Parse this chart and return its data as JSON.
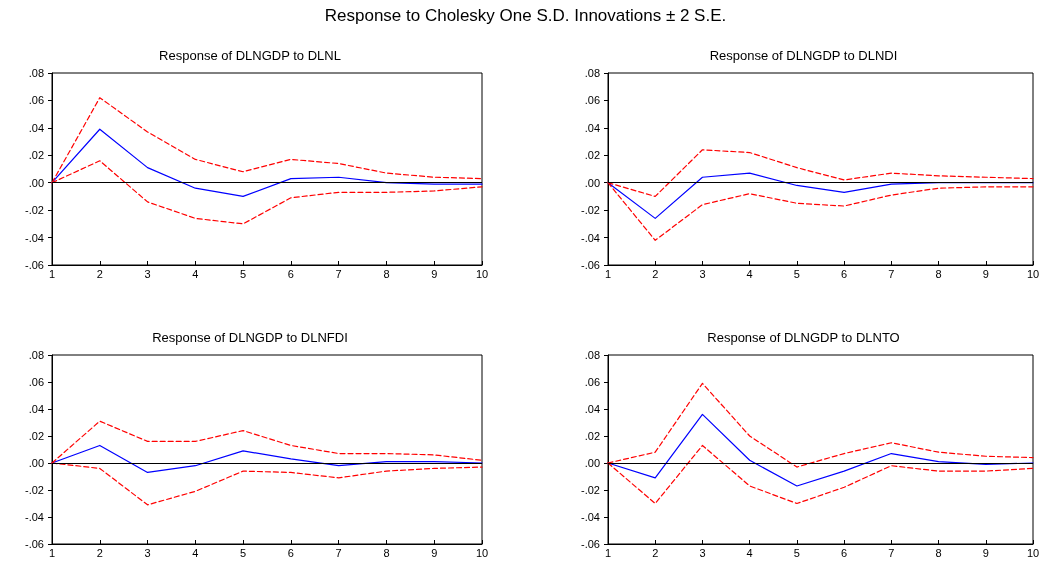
{
  "chart_data": [
    {
      "type": "line",
      "title": "Response to Cholesky One S.D. Innovations ± 2 S.E.",
      "subtitle": "Response of DLNGDP to DLNL",
      "categories": [
        "1",
        "2",
        "3",
        "4",
        "5",
        "6",
        "7",
        "8",
        "9",
        "10"
      ],
      "ylim": [
        -0.06,
        0.08
      ],
      "yticks": [
        {
          "value": -0.06,
          "label": "-.06"
        },
        {
          "value": -0.04,
          "label": "-.04"
        },
        {
          "value": -0.02,
          "label": "-.02"
        },
        {
          "value": 0,
          "label": ".00"
        },
        {
          "value": 0.02,
          "label": ".02"
        },
        {
          "value": 0.04,
          "label": ".04"
        },
        {
          "value": 0.06,
          "label": ".06"
        },
        {
          "value": 0.08,
          "label": ".08"
        }
      ],
      "marker": "none",
      "ref_lines": [
        {
          "axis": "y",
          "value": 0,
          "color": "#000000",
          "line_style": "solid"
        }
      ],
      "series": [
        {
          "color": "#0000ff",
          "line_style": "solid",
          "values": [
            0,
            0.039,
            0.011,
            -0.004,
            -0.01,
            0.003,
            0.004,
            0.0,
            -0.001,
            -0.001
          ]
        },
        {
          "color": "#ff0000",
          "line_style": "dashed",
          "values": [
            0,
            0.062,
            0.037,
            0.017,
            0.008,
            0.017,
            0.014,
            0.007,
            0.004,
            0.003
          ]
        },
        {
          "color": "#ff0000",
          "line_style": "dashed",
          "values": [
            0,
            0.016,
            -0.014,
            -0.026,
            -0.03,
            -0.011,
            -0.007,
            -0.007,
            -0.006,
            -0.003
          ]
        }
      ]
    },
    {
      "type": "line",
      "subtitle": "Response of DLNGDP to DLNDI",
      "categories": [
        "1",
        "2",
        "3",
        "4",
        "5",
        "6",
        "7",
        "8",
        "9",
        "10"
      ],
      "ylim": [
        -0.06,
        0.08
      ],
      "yticks": [
        {
          "value": -0.06,
          "label": "-.06"
        },
        {
          "value": -0.04,
          "label": "-.04"
        },
        {
          "value": -0.02,
          "label": "-.02"
        },
        {
          "value": 0,
          "label": ".00"
        },
        {
          "value": 0.02,
          "label": ".02"
        },
        {
          "value": 0.04,
          "label": ".04"
        },
        {
          "value": 0.06,
          "label": ".06"
        },
        {
          "value": 0.08,
          "label": ".08"
        }
      ],
      "marker": "none",
      "ref_lines": [
        {
          "axis": "y",
          "value": 0,
          "color": "#000000",
          "line_style": "solid"
        }
      ],
      "series": [
        {
          "color": "#0000ff",
          "line_style": "solid",
          "values": [
            0,
            -0.026,
            0.004,
            0.007,
            -0.002,
            -0.007,
            -0.001,
            0.0,
            0.0,
            0.0
          ]
        },
        {
          "color": "#ff0000",
          "line_style": "dashed",
          "values": [
            0,
            -0.01,
            0.024,
            0.022,
            0.011,
            0.002,
            0.007,
            0.005,
            0.004,
            0.003
          ]
        },
        {
          "color": "#ff0000",
          "line_style": "dashed",
          "values": [
            0,
            -0.042,
            -0.016,
            -0.008,
            -0.015,
            -0.017,
            -0.009,
            -0.004,
            -0.003,
            -0.003
          ]
        }
      ]
    },
    {
      "type": "line",
      "subtitle": "Response of DLNGDP to DLNFDI",
      "categories": [
        "1",
        "2",
        "3",
        "4",
        "5",
        "6",
        "7",
        "8",
        "9",
        "10"
      ],
      "ylim": [
        -0.06,
        0.08
      ],
      "yticks": [
        {
          "value": -0.06,
          "label": "-.06"
        },
        {
          "value": -0.04,
          "label": "-.04"
        },
        {
          "value": -0.02,
          "label": "-.02"
        },
        {
          "value": 0,
          "label": ".00"
        },
        {
          "value": 0.02,
          "label": ".02"
        },
        {
          "value": 0.04,
          "label": ".04"
        },
        {
          "value": 0.06,
          "label": ".06"
        },
        {
          "value": 0.08,
          "label": ".08"
        }
      ],
      "marker": "none",
      "ref_lines": [
        {
          "axis": "y",
          "value": 0,
          "color": "#000000",
          "line_style": "solid"
        }
      ],
      "series": [
        {
          "color": "#0000ff",
          "line_style": "solid",
          "values": [
            0,
            0.013,
            -0.007,
            -0.002,
            0.009,
            0.003,
            -0.002,
            0.001,
            0.001,
            0.0
          ]
        },
        {
          "color": "#ff0000",
          "line_style": "dashed",
          "values": [
            0,
            0.031,
            0.016,
            0.016,
            0.024,
            0.013,
            0.007,
            0.007,
            0.006,
            0.002
          ]
        },
        {
          "color": "#ff0000",
          "line_style": "dashed",
          "values": [
            0,
            -0.004,
            -0.031,
            -0.021,
            -0.006,
            -0.007,
            -0.011,
            -0.006,
            -0.004,
            -0.003
          ]
        }
      ]
    },
    {
      "type": "line",
      "subtitle": "Response of DLNGDP to DLNTO",
      "categories": [
        "1",
        "2",
        "3",
        "4",
        "5",
        "6",
        "7",
        "8",
        "9",
        "10"
      ],
      "ylim": [
        -0.06,
        0.08
      ],
      "yticks": [
        {
          "value": -0.06,
          "label": "-.06"
        },
        {
          "value": -0.04,
          "label": "-.04"
        },
        {
          "value": -0.02,
          "label": "-.02"
        },
        {
          "value": 0,
          "label": ".00"
        },
        {
          "value": 0.02,
          "label": ".02"
        },
        {
          "value": 0.04,
          "label": ".04"
        },
        {
          "value": 0.06,
          "label": ".06"
        },
        {
          "value": 0.08,
          "label": ".08"
        }
      ],
      "marker": "none",
      "ref_lines": [
        {
          "axis": "y",
          "value": 0,
          "color": "#000000",
          "line_style": "solid"
        }
      ],
      "series": [
        {
          "color": "#0000ff",
          "line_style": "solid",
          "values": [
            0,
            -0.011,
            0.036,
            0.002,
            -0.017,
            -0.006,
            0.007,
            0.001,
            -0.001,
            0.0
          ]
        },
        {
          "color": "#ff0000",
          "line_style": "dashed",
          "values": [
            0,
            0.008,
            0.059,
            0.02,
            -0.003,
            0.007,
            0.015,
            0.008,
            0.005,
            0.004
          ]
        },
        {
          "color": "#ff0000",
          "line_style": "dashed",
          "values": [
            0,
            -0.03,
            0.013,
            -0.017,
            -0.03,
            -0.018,
            -0.002,
            -0.006,
            -0.006,
            -0.004
          ]
        }
      ]
    }
  ]
}
